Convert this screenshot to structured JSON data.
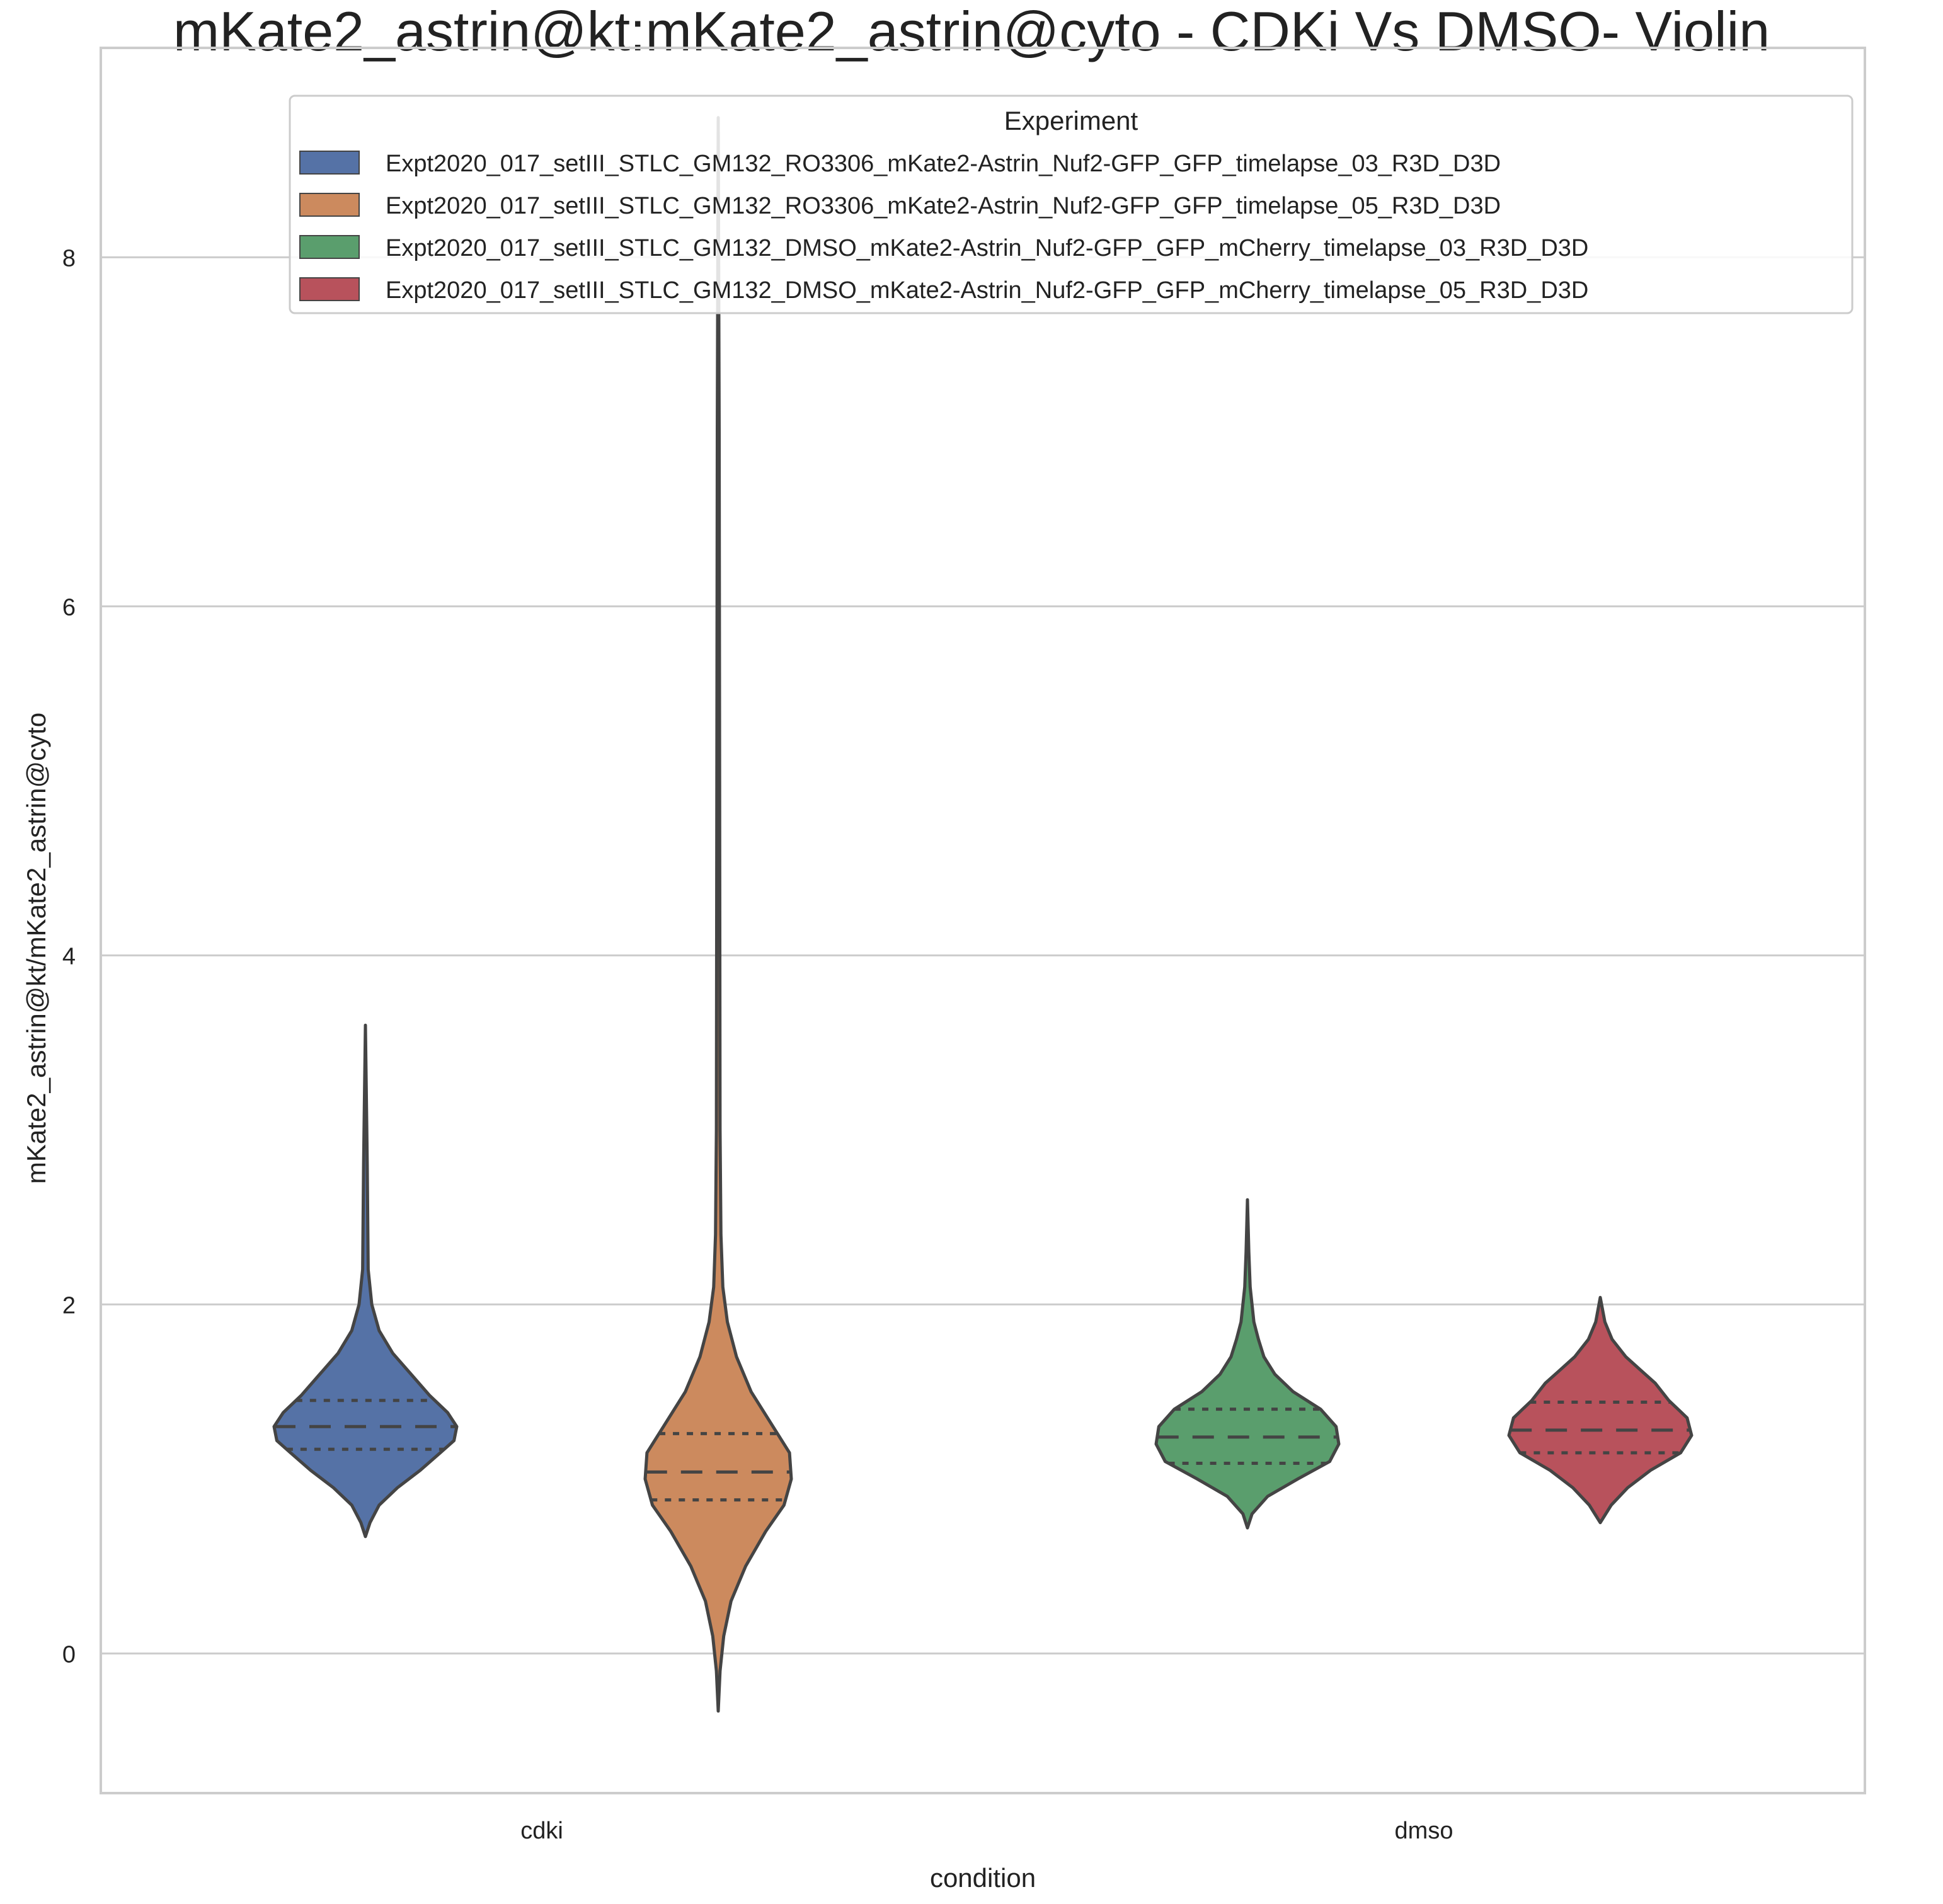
{
  "chart_data": {
    "type": "violin",
    "title": "mKate2_astrin@kt:mKate2_astrin@cyto - CDKi Vs DMSO- Violin",
    "xlabel": "condition",
    "ylabel": "mKate2_astrin@kt/mKate2_astrin@cyto",
    "ylim": [
      -0.8,
      9.2
    ],
    "yticks": [
      0,
      2,
      4,
      6,
      8
    ],
    "ytick_labels": [
      "0",
      "2",
      "4",
      "6",
      "8"
    ],
    "categories": [
      "cdki",
      "dmso"
    ],
    "grid": "horizontal",
    "legend": {
      "title": "Experiment",
      "placement": "top-right"
    },
    "series": [
      {
        "name": "Expt2020_017_setIII_STLC_GM132_RO3306_mKate2-Astrin_Nuf2-GFP_GFP_timelapse_03_R3D_D3D",
        "category": "cdki",
        "color": "#5572a6",
        "min": 0.67,
        "max": 3.6,
        "q1": 1.17,
        "median": 1.3,
        "q3": 1.45,
        "profile": [
          [
            0.67,
            0.0
          ],
          [
            0.75,
            0.05
          ],
          [
            0.85,
            0.15
          ],
          [
            0.95,
            0.35
          ],
          [
            1.05,
            0.6
          ],
          [
            1.15,
            0.82
          ],
          [
            1.22,
            0.97
          ],
          [
            1.3,
            1.0
          ],
          [
            1.38,
            0.9
          ],
          [
            1.48,
            0.7
          ],
          [
            1.6,
            0.5
          ],
          [
            1.72,
            0.3
          ],
          [
            1.85,
            0.15
          ],
          [
            2.0,
            0.07
          ],
          [
            2.2,
            0.03
          ],
          [
            2.8,
            0.02
          ],
          [
            3.0,
            0.015
          ],
          [
            3.6,
            0.0
          ]
        ]
      },
      {
        "name": "Expt2020_017_setIII_STLC_GM132_RO3306_mKate2-Astrin_Nuf2-GFP_GFP_timelapse_05_R3D_D3D",
        "category": "cdki",
        "color": "#cc8a5e",
        "min": -0.33,
        "max": 8.8,
        "q1": 0.88,
        "median": 1.04,
        "q3": 1.26,
        "profile": [
          [
            -0.33,
            0.0
          ],
          [
            -0.1,
            0.02
          ],
          [
            0.1,
            0.06
          ],
          [
            0.3,
            0.14
          ],
          [
            0.5,
            0.3
          ],
          [
            0.7,
            0.52
          ],
          [
            0.85,
            0.72
          ],
          [
            1.0,
            0.8
          ],
          [
            1.15,
            0.78
          ],
          [
            1.3,
            0.6
          ],
          [
            1.5,
            0.36
          ],
          [
            1.7,
            0.2
          ],
          [
            1.9,
            0.1
          ],
          [
            2.1,
            0.05
          ],
          [
            2.4,
            0.03
          ],
          [
            3.0,
            0.02
          ],
          [
            5.0,
            0.015
          ],
          [
            7.0,
            0.01
          ],
          [
            8.8,
            0.0
          ]
        ]
      },
      {
        "name": "Expt2020_017_setIII_STLC_GM132_DMSO_mKate2-Astrin_Nuf2-GFP_GFP_mCherry_timelapse_03_R3D_D3D",
        "category": "dmso",
        "color": "#5a9e6d",
        "min": 0.72,
        "max": 2.6,
        "q1": 1.09,
        "median": 1.24,
        "q3": 1.4,
        "profile": [
          [
            0.72,
            0.0
          ],
          [
            0.8,
            0.05
          ],
          [
            0.9,
            0.22
          ],
          [
            1.0,
            0.55
          ],
          [
            1.1,
            0.9
          ],
          [
            1.2,
            1.0
          ],
          [
            1.3,
            0.97
          ],
          [
            1.4,
            0.8
          ],
          [
            1.5,
            0.5
          ],
          [
            1.6,
            0.3
          ],
          [
            1.7,
            0.18
          ],
          [
            1.8,
            0.12
          ],
          [
            1.9,
            0.07
          ],
          [
            2.1,
            0.03
          ],
          [
            2.3,
            0.015
          ],
          [
            2.6,
            0.0
          ]
        ]
      },
      {
        "name": "Expt2020_017_setIII_STLC_GM132_DMSO_mKate2-Astrin_Nuf2-GFP_GFP_mCherry_timelapse_05_R3D_D3D",
        "category": "dmso",
        "color": "#b8525c",
        "min": 0.75,
        "max": 2.04,
        "q1": 1.15,
        "median": 1.28,
        "q3": 1.44,
        "profile": [
          [
            0.75,
            0.0
          ],
          [
            0.85,
            0.12
          ],
          [
            0.95,
            0.3
          ],
          [
            1.05,
            0.55
          ],
          [
            1.15,
            0.88
          ],
          [
            1.25,
            1.0
          ],
          [
            1.35,
            0.95
          ],
          [
            1.45,
            0.75
          ],
          [
            1.55,
            0.6
          ],
          [
            1.62,
            0.45
          ],
          [
            1.7,
            0.28
          ],
          [
            1.8,
            0.13
          ],
          [
            1.9,
            0.05
          ],
          [
            2.04,
            0.0
          ]
        ]
      }
    ]
  }
}
